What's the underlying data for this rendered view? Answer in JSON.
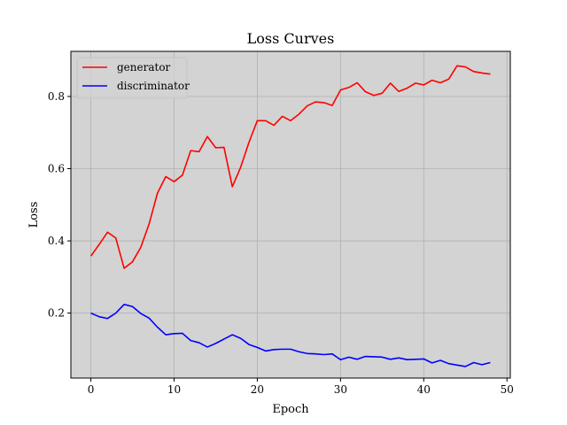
{
  "chart_data": {
    "type": "line",
    "title": "Loss Curves",
    "xlabel": "Epoch",
    "ylabel": "Loss",
    "xlim": [
      -2.4,
      50.4
    ],
    "ylim": [
      0.02,
      0.925
    ],
    "xticks": [
      0,
      10,
      20,
      30,
      40,
      50
    ],
    "yticks": [
      0.2,
      0.4,
      0.6,
      0.8
    ],
    "grid": true,
    "legend_position": "top-left",
    "background_color": "#d3d3d3",
    "x": [
      0,
      1,
      2,
      3,
      4,
      5,
      6,
      7,
      8,
      9,
      10,
      11,
      12,
      13,
      14,
      15,
      16,
      17,
      18,
      19,
      20,
      21,
      22,
      23,
      24,
      25,
      26,
      27,
      28,
      29,
      30,
      31,
      32,
      33,
      34,
      35,
      36,
      37,
      38,
      39,
      40,
      41,
      42,
      43,
      44,
      45,
      46,
      47,
      48
    ],
    "series": [
      {
        "name": "generator",
        "color": "#ff0000",
        "values": [
          0.358,
          0.39,
          0.424,
          0.408,
          0.324,
          0.342,
          0.382,
          0.447,
          0.532,
          0.578,
          0.564,
          0.582,
          0.65,
          0.647,
          0.689,
          0.658,
          0.659,
          0.55,
          0.604,
          0.673,
          0.733,
          0.733,
          0.72,
          0.745,
          0.733,
          0.751,
          0.774,
          0.785,
          0.783,
          0.775,
          0.818,
          0.825,
          0.838,
          0.813,
          0.803,
          0.809,
          0.837,
          0.814,
          0.823,
          0.837,
          0.832,
          0.845,
          0.838,
          0.848,
          0.885,
          0.882,
          0.869,
          0.865,
          0.862
        ]
      },
      {
        "name": "discriminator",
        "color": "#0000ff",
        "values": [
          0.2,
          0.19,
          0.185,
          0.2,
          0.224,
          0.218,
          0.199,
          0.186,
          0.161,
          0.14,
          0.143,
          0.144,
          0.124,
          0.118,
          0.106,
          0.116,
          0.128,
          0.14,
          0.13,
          0.113,
          0.105,
          0.095,
          0.099,
          0.1,
          0.1,
          0.093,
          0.088,
          0.087,
          0.085,
          0.087,
          0.071,
          0.078,
          0.072,
          0.08,
          0.079,
          0.078,
          0.072,
          0.076,
          0.071,
          0.072,
          0.073,
          0.062,
          0.069,
          0.06,
          0.056,
          0.052,
          0.063,
          0.057,
          0.063
        ]
      }
    ]
  }
}
